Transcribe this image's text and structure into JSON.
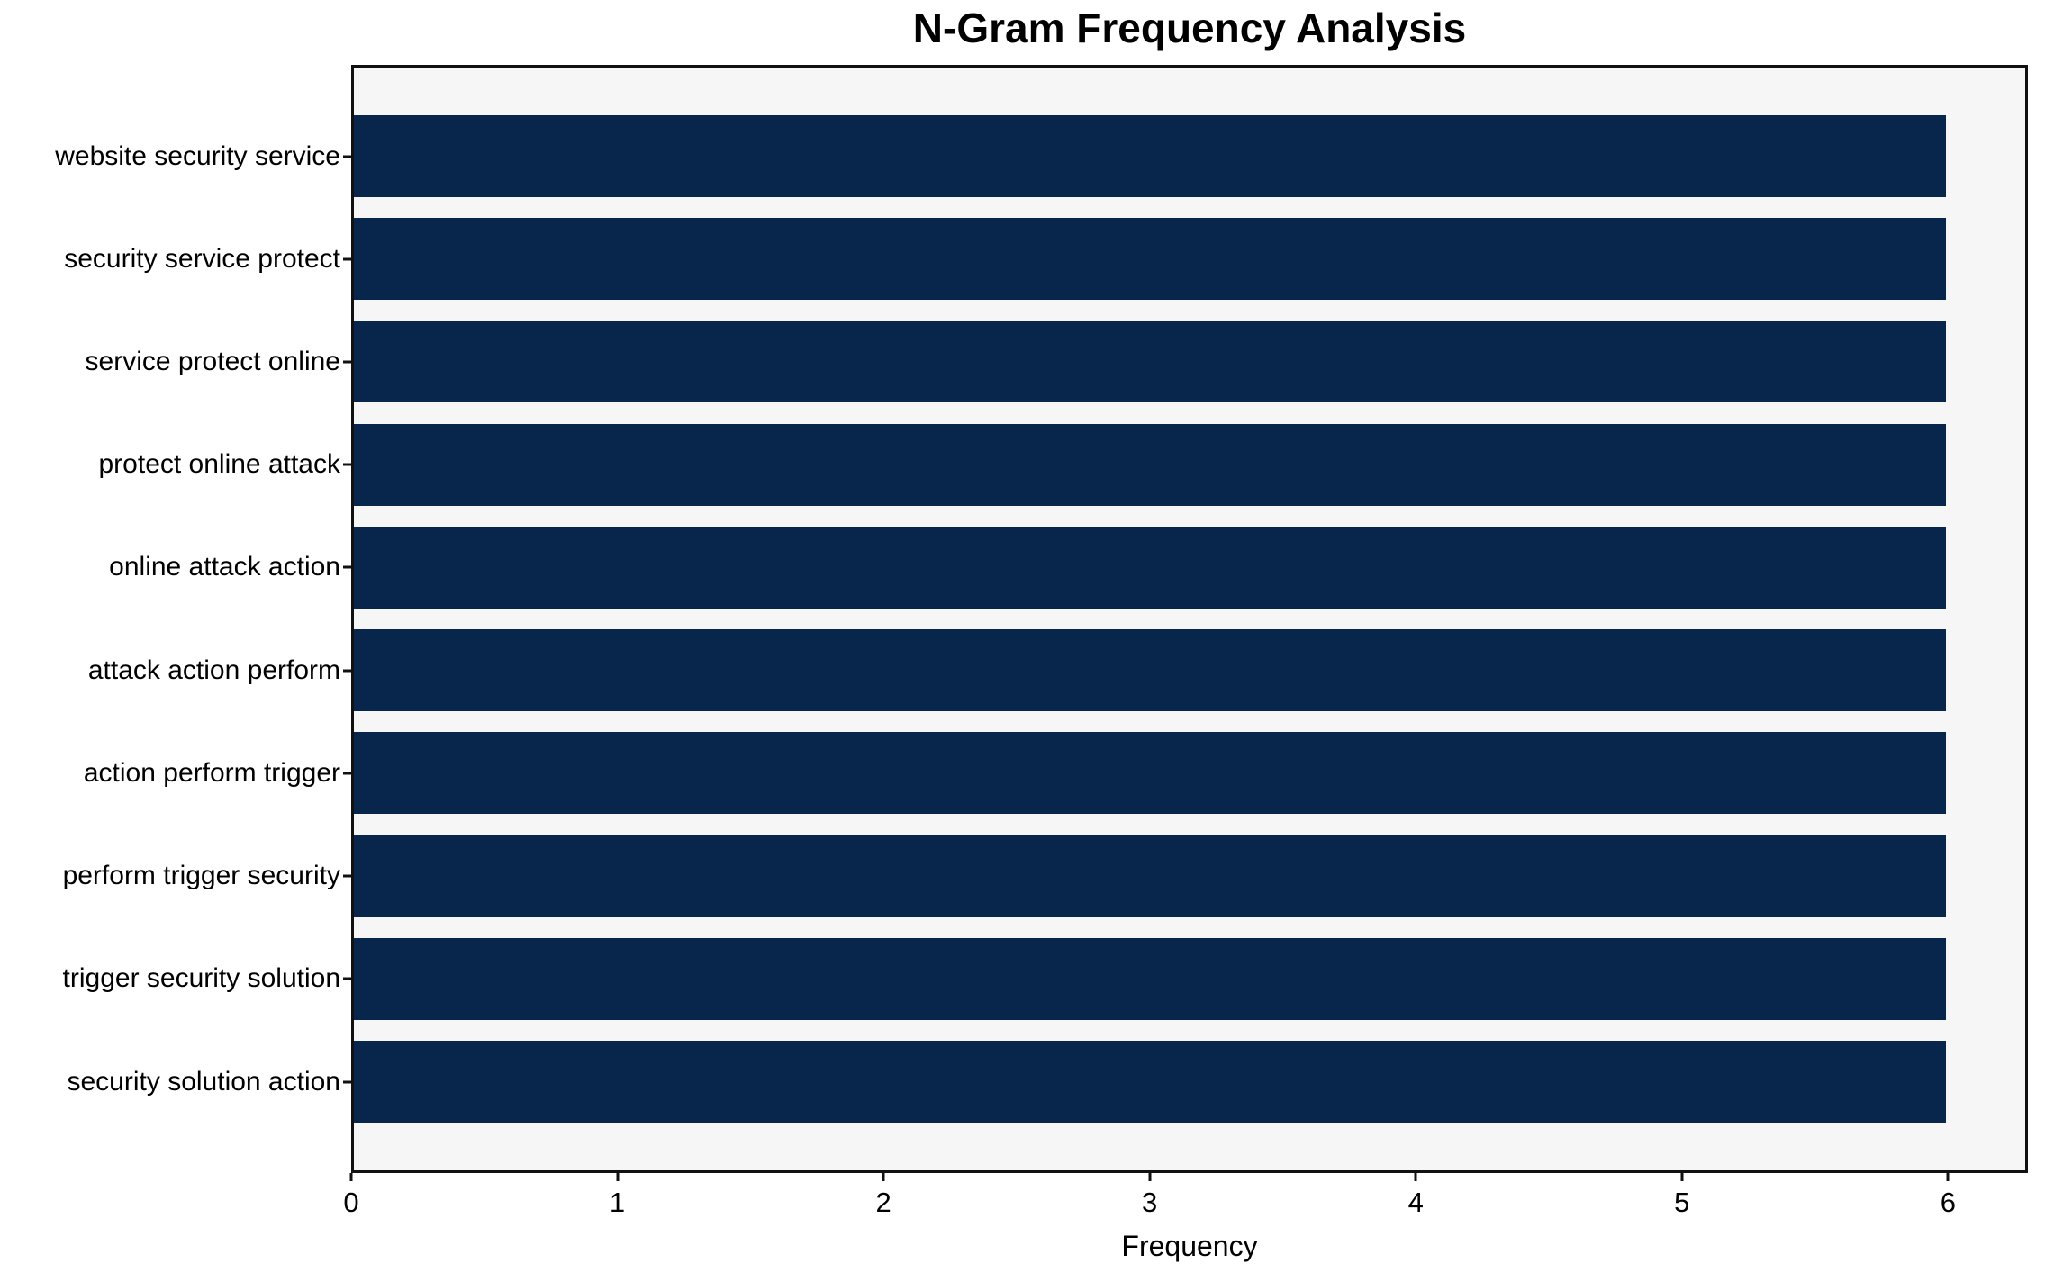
{
  "chart_data": {
    "type": "bar",
    "orientation": "horizontal",
    "title": "N-Gram Frequency Analysis",
    "xlabel": "Frequency",
    "ylabel": "",
    "categories": [
      "website security service",
      "security service protect",
      "service protect online",
      "protect online attack",
      "online attack action",
      "attack action perform",
      "action perform trigger",
      "perform trigger security",
      "trigger security solution",
      "security solution action"
    ],
    "values": [
      6,
      6,
      6,
      6,
      6,
      6,
      6,
      6,
      6,
      6
    ],
    "xticks": [
      0,
      1,
      2,
      3,
      4,
      5,
      6
    ],
    "xlim": [
      0,
      6.3
    ],
    "grid": false,
    "legend_position": "none",
    "bar_color": "#08254b",
    "plot_background": "#f6f6f6",
    "figure_background": "#ffffff",
    "spine_color": "#111111",
    "text_color": "#000000"
  }
}
